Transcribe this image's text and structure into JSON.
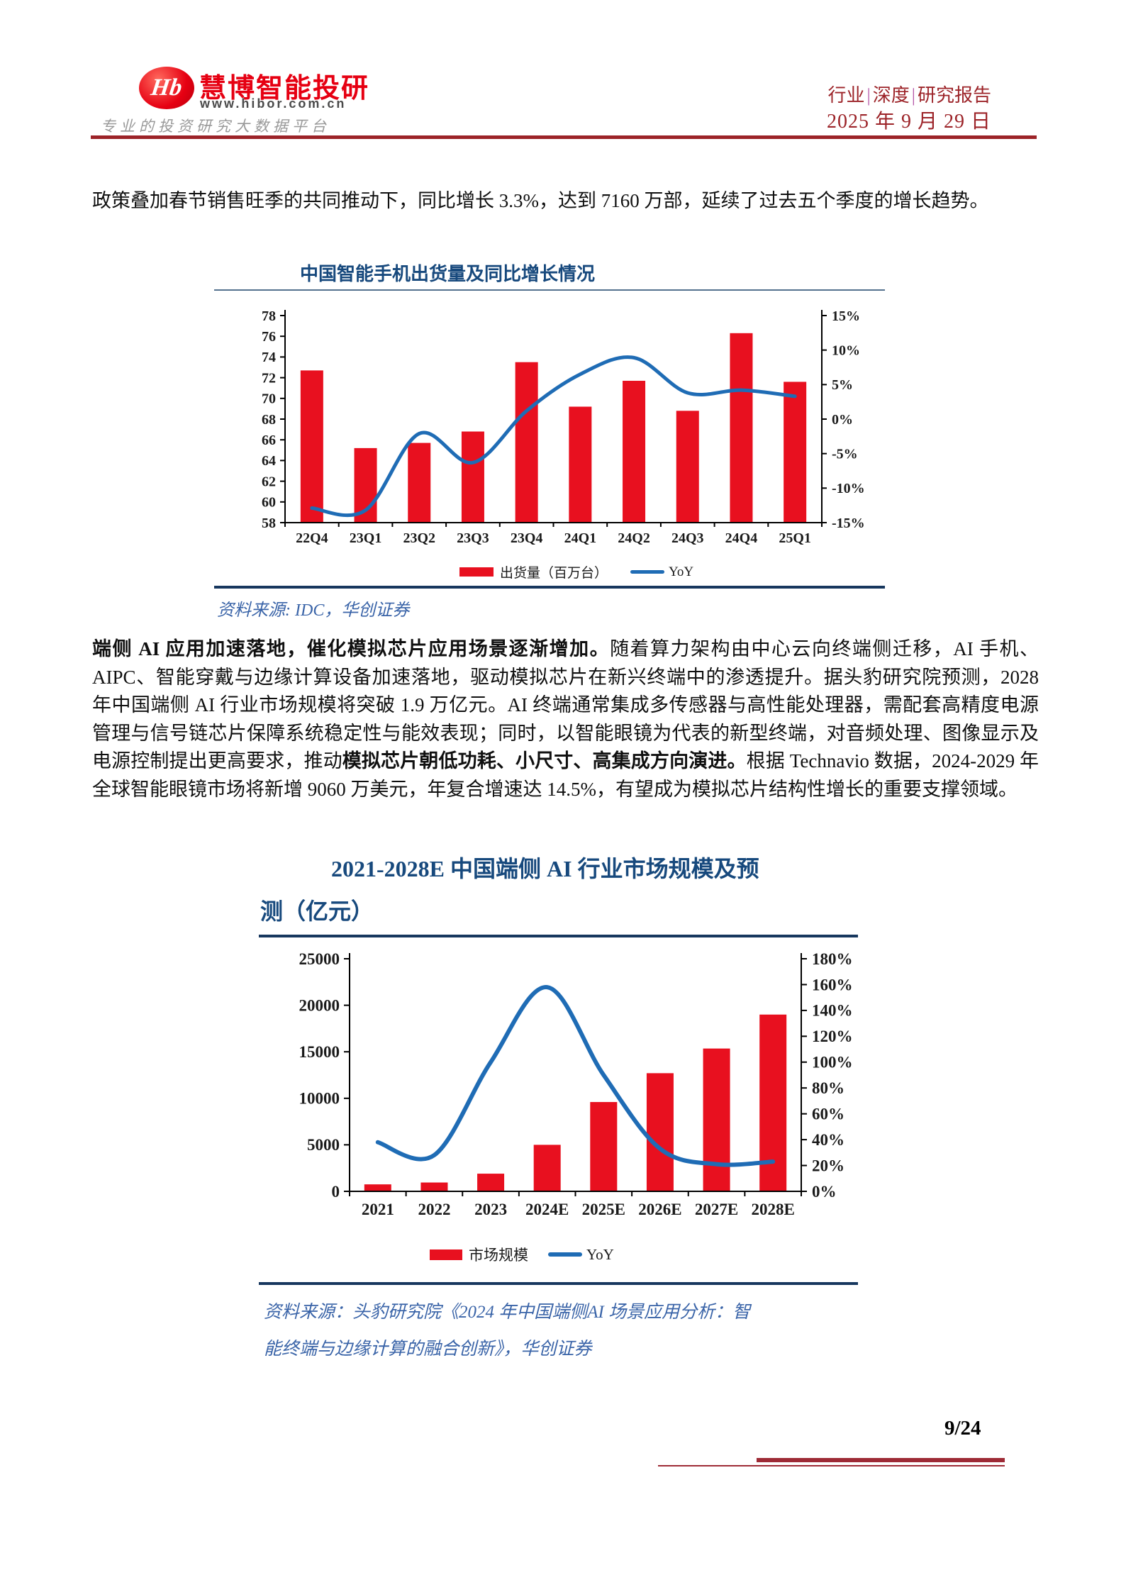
{
  "header": {
    "brand_monogram": "Hb",
    "brand": "慧博智能投研",
    "website": "www.hibor.com.cn",
    "slogan": "专业的投资研究大数据平台",
    "doc_type_parts": [
      "行业",
      "深度",
      "研究报告"
    ],
    "doc_type_separator": "|",
    "date": "2025 年 9 月 29 日"
  },
  "paragraphs": {
    "p1": "政策叠加春节销售旺季的共同推动下，同比增长 3.3%，达到 7160 万部，延续了过去五个季度的增长趋势。",
    "p2_segments": [
      {
        "text": "端侧 AI 应用加速落地，催化模拟芯片应用场景逐渐增加。",
        "bold": true
      },
      {
        "text": "随着算力架构由中心云向终端侧迁移，AI 手机、AIPC、智能穿戴与边缘计算设备加速落地，驱动模拟芯片在新兴终端中的渗透提升。据头豹研究院预测，2028 年中国端侧 AI 行业市场规模将突破 1.9 万亿元。AI 终端通常集成多传感器与高性能处理器，需配套高精度电源管理与信号链芯片保障系统稳定性与能效表现；同时，以智能眼镜为代表的新型终端，对音频处理、图像显示及电源控制提出更高要求，推动",
        "bold": false
      },
      {
        "text": "模拟芯片朝低功耗、小尺寸、高集成方向演进。",
        "bold": true
      },
      {
        "text": "根据 Technavio 数据，2024-2029 年全球智能眼镜市场将新增 9060 万美元，年复合增速达 14.5%，有望成为模拟芯片结构性增长的重要支撑领域。",
        "bold": false
      }
    ]
  },
  "chart_data": [
    {
      "type": "bar+line",
      "title": "中国智能手机出货量及同比增长情况",
      "categories": [
        "22Q4",
        "23Q1",
        "23Q2",
        "23Q3",
        "23Q4",
        "24Q1",
        "24Q2",
        "24Q3",
        "24Q4",
        "25Q1"
      ],
      "series": [
        {
          "name": "出货量（百万台）",
          "type": "bar",
          "axis": "left",
          "values": [
            72.7,
            65.2,
            65.7,
            66.8,
            73.5,
            69.2,
            71.7,
            68.8,
            76.3,
            71.6
          ]
        },
        {
          "name": "YoY",
          "type": "line",
          "axis": "right",
          "values_pct": [
            -12.9,
            -13.2,
            -2.1,
            -6.3,
            1.2,
            6.5,
            8.9,
            3.8,
            4.2,
            3.3
          ]
        }
      ],
      "left_axis": {
        "min": 58,
        "max": 78,
        "step": 2
      },
      "right_axis": {
        "min": -15,
        "max": 15,
        "step": 5,
        "unit": "%"
      },
      "legend_position": "bottom",
      "grid": false,
      "source": "资料来源: IDC，华创证券"
    },
    {
      "type": "bar+line",
      "title": "2021-2028E 中国端侧 AI 行业市场规模及预测（亿元）",
      "title_lines": [
        "2021-2028E 中国端侧 AI 行业市场规模及预",
        "测（亿元）"
      ],
      "categories": [
        "2021",
        "2022",
        "2023",
        "2024E",
        "2025E",
        "2026E",
        "2027E",
        "2028E"
      ],
      "series": [
        {
          "name": "市场规模",
          "type": "bar",
          "axis": "left",
          "values": [
            750,
            950,
            1900,
            5000,
            9600,
            12700,
            15350,
            19000
          ]
        },
        {
          "name": "YoY",
          "type": "line",
          "axis": "right",
          "values_pct": [
            38,
            28,
            100,
            158,
            90,
            33,
            21,
            23
          ]
        }
      ],
      "left_axis": {
        "min": 0,
        "max": 25000,
        "step": 5000
      },
      "right_axis": {
        "min": 0,
        "max": 180,
        "step": 20,
        "unit": "%"
      },
      "legend_position": "bottom",
      "grid": false,
      "source_lines": [
        "资料来源：头豹研究院《2024 年中国端侧AI 场景应用分析：智",
        "能终端与边缘计算的融合创新》，华创证券"
      ]
    }
  ],
  "footer": {
    "page_number": "9/24"
  },
  "colors": {
    "bar_red": "#e8101f",
    "line_blue": "#1f6cb5",
    "brand_red": "#e60012",
    "header_red": "#9c2328",
    "separator_purple": "#b557a8",
    "navy_border": "#17375e",
    "chart1_top_border": "#54718e",
    "title_navy": "#17497d",
    "source_blue": "#3a64a8",
    "footer_line_red": "#9e2b36",
    "website_gray": "#4a4a4a",
    "slogan_gray": "#999999"
  }
}
